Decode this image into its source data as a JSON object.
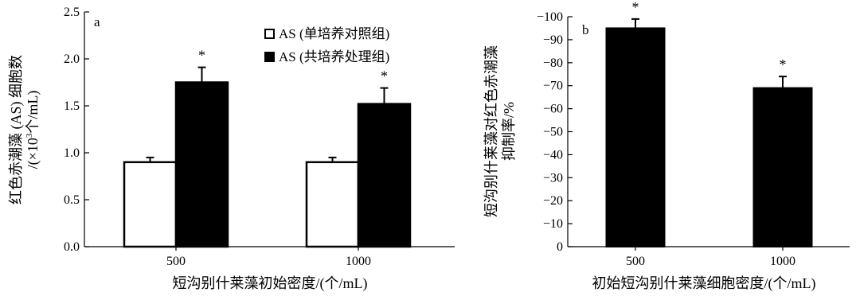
{
  "chart_data": [
    {
      "panel_label": "a",
      "type": "bar",
      "categories": [
        "500",
        "1000"
      ],
      "series": [
        {
          "name": "AS (单培养对照组)",
          "values": [
            0.9,
            0.9
          ],
          "errors": [
            0.05,
            0.05
          ],
          "fill": "#ffffff",
          "marks": [
            "",
            ""
          ]
        },
        {
          "name": "AS (共培养处理组)",
          "values": [
            1.75,
            1.52
          ],
          "errors": [
            0.16,
            0.17
          ],
          "fill": "#000000",
          "marks": [
            "*",
            "*"
          ]
        }
      ],
      "ylim": [
        0,
        2.5
      ],
      "yticks": [
        "0.0",
        "0.5",
        "1.0",
        "1.5",
        "2.0",
        "2.5"
      ],
      "ylabel_line1": "红色赤潮藻 (AS) 细胞数",
      "ylabel_line2_prefix": "/(×10",
      "ylabel_line2_sup": "3",
      "ylabel_line2_suffix": "个/mL)",
      "xlabel": "短沟别什莱藻初始密度/(个/mL)",
      "legend_position": "top-right"
    },
    {
      "panel_label": "b",
      "type": "bar",
      "categories": [
        "500",
        "1000"
      ],
      "series": [
        {
          "name": "",
          "values": [
            -95,
            -69
          ],
          "errors": [
            4,
            5
          ],
          "fill": "#000000",
          "marks": [
            "*",
            "*"
          ]
        }
      ],
      "ylim": [
        0,
        -100
      ],
      "yticks": [
        "0",
        "−10",
        "−20",
        "−30",
        "−40",
        "−50",
        "−60",
        "−70",
        "−80",
        "−90",
        "−100"
      ],
      "ylabel_line1": "短沟别什莱藻对红色赤潮藻",
      "ylabel_line2": "抑制率/%",
      "xlabel": "初始短沟别什莱藻细胞密度/(个/mL)"
    }
  ]
}
